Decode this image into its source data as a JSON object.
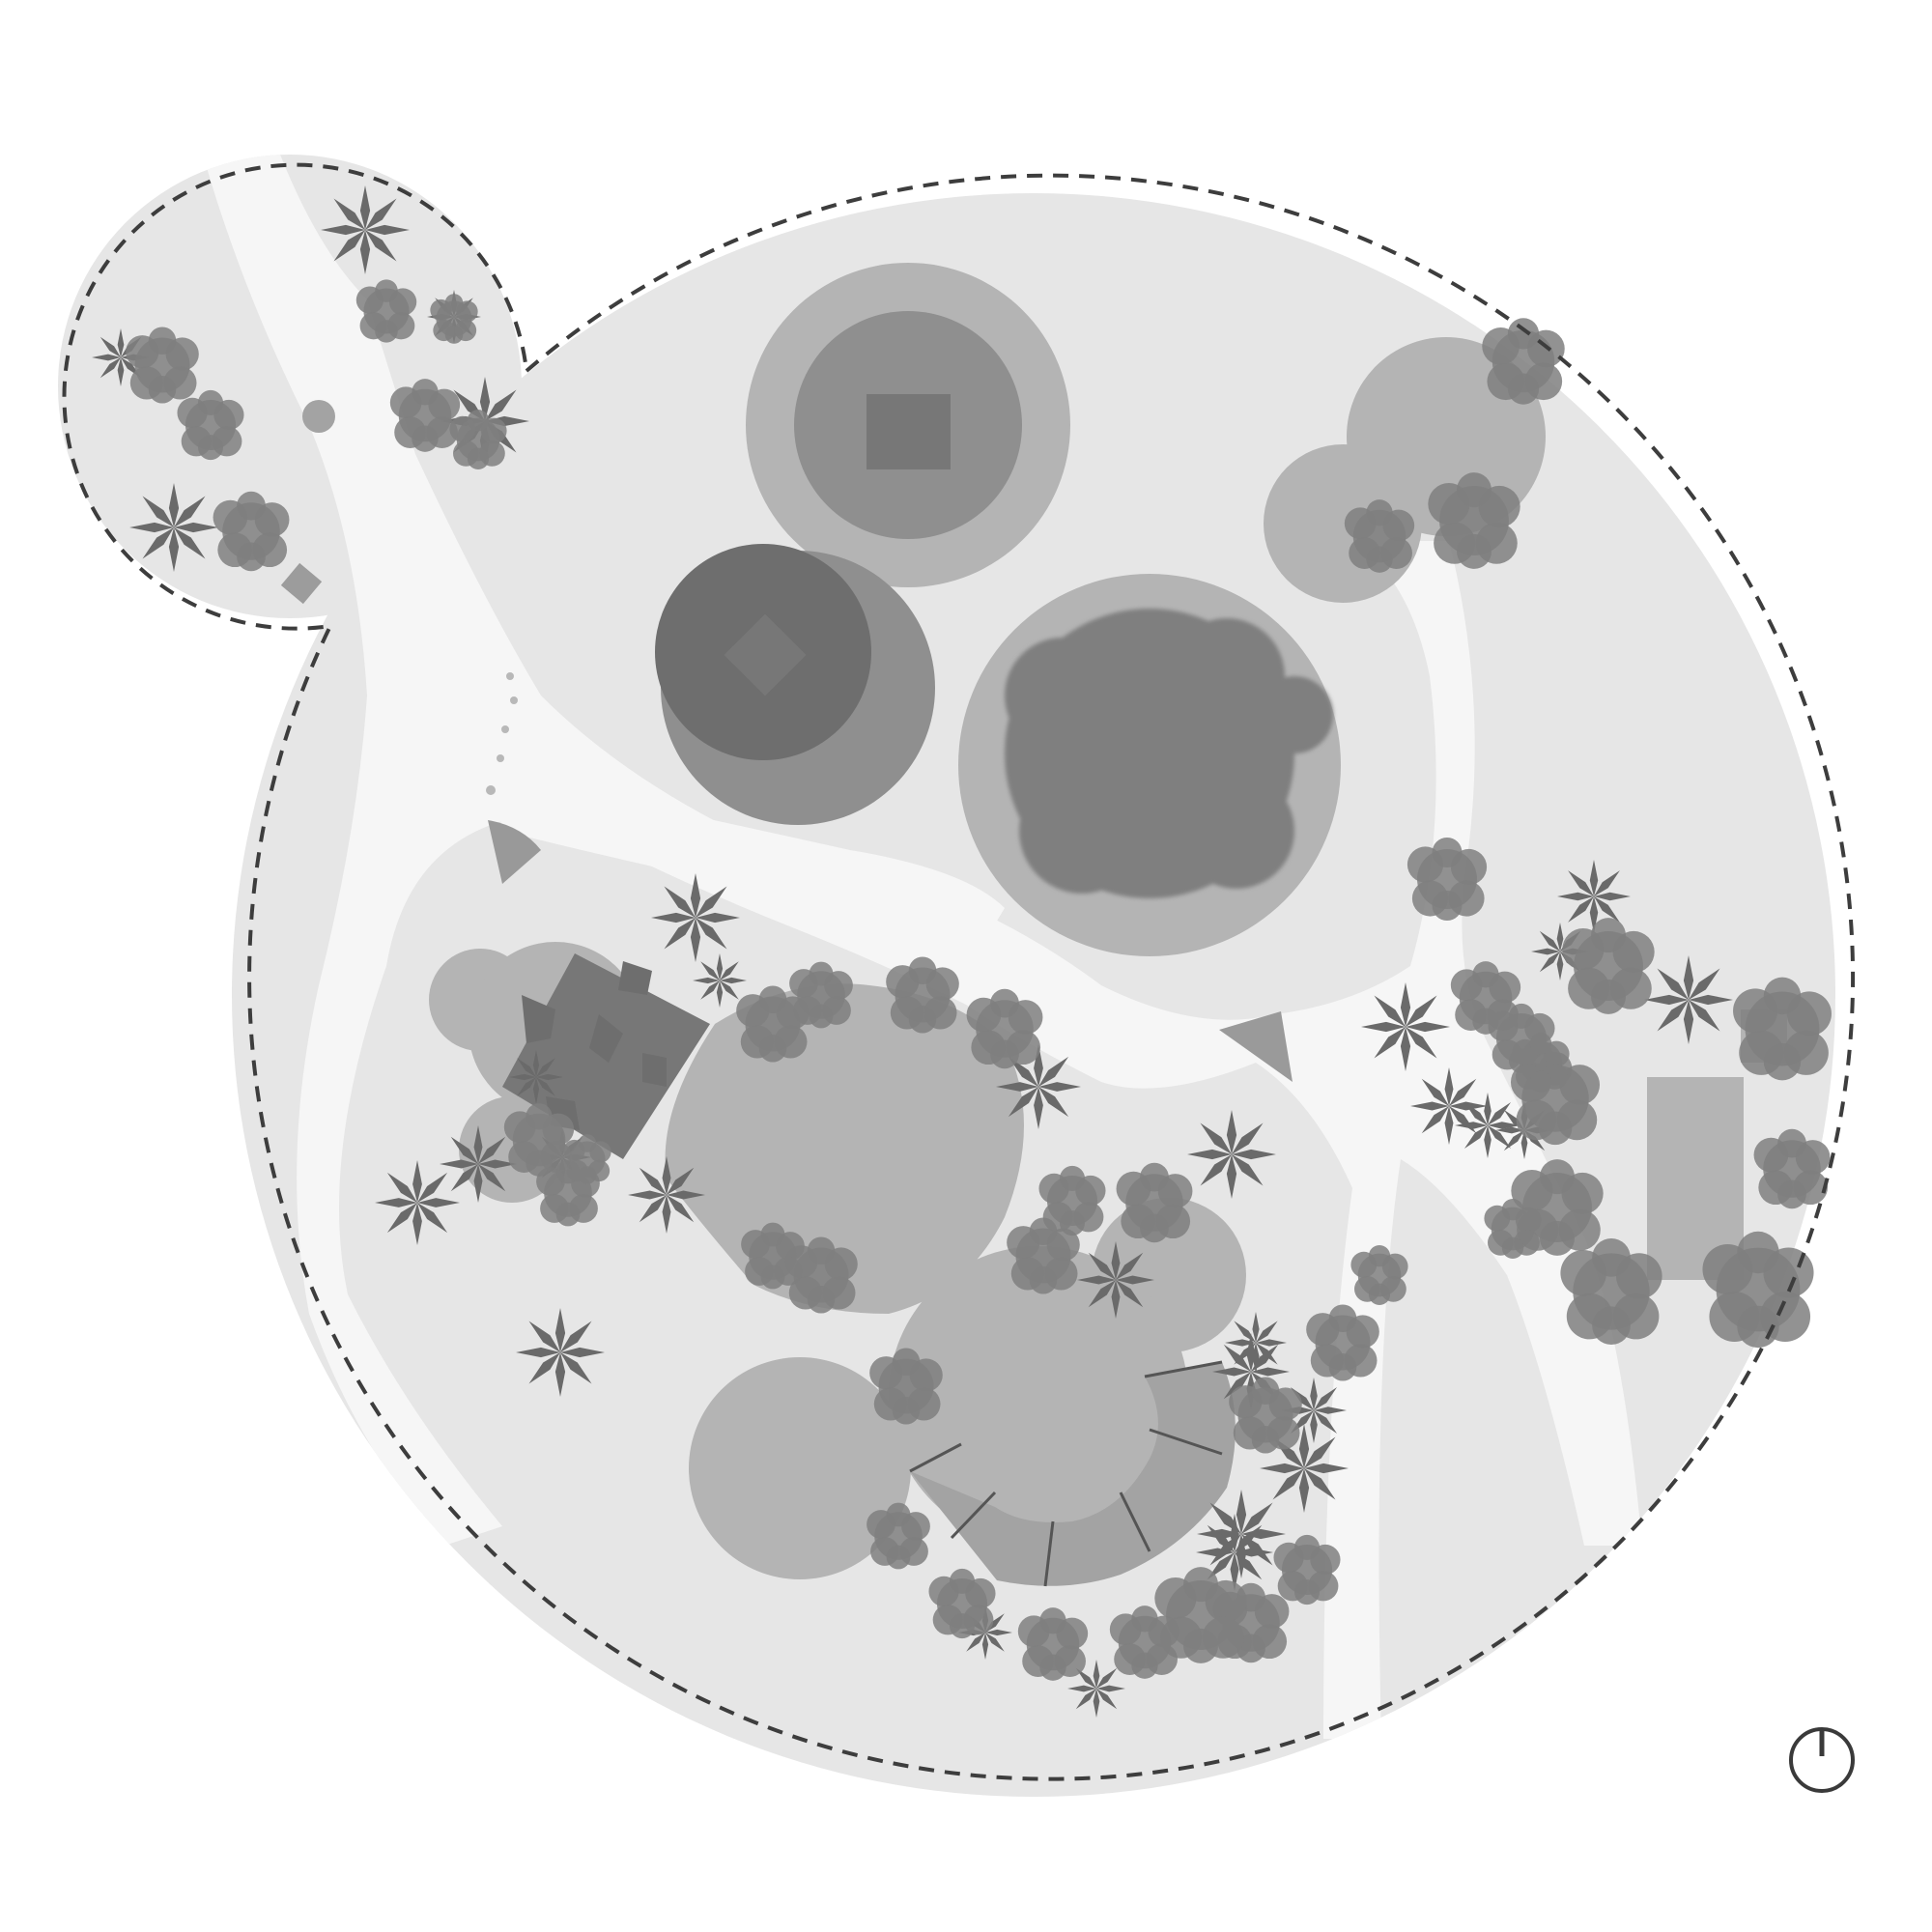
{
  "map": {
    "kind": "site plan",
    "colors": {
      "background": "#ffffff",
      "site": "#e6e6e6",
      "path": "#f6f6f6",
      "zone": "#b4b4b4",
      "structure": "#777777",
      "vegetation": "#6a6a6a",
      "boundary": "#3d3d3d"
    },
    "icons": [
      "north-arrow-icon",
      "palm-tree-icon",
      "shrub-icon",
      "canopy-tree-icon"
    ]
  }
}
